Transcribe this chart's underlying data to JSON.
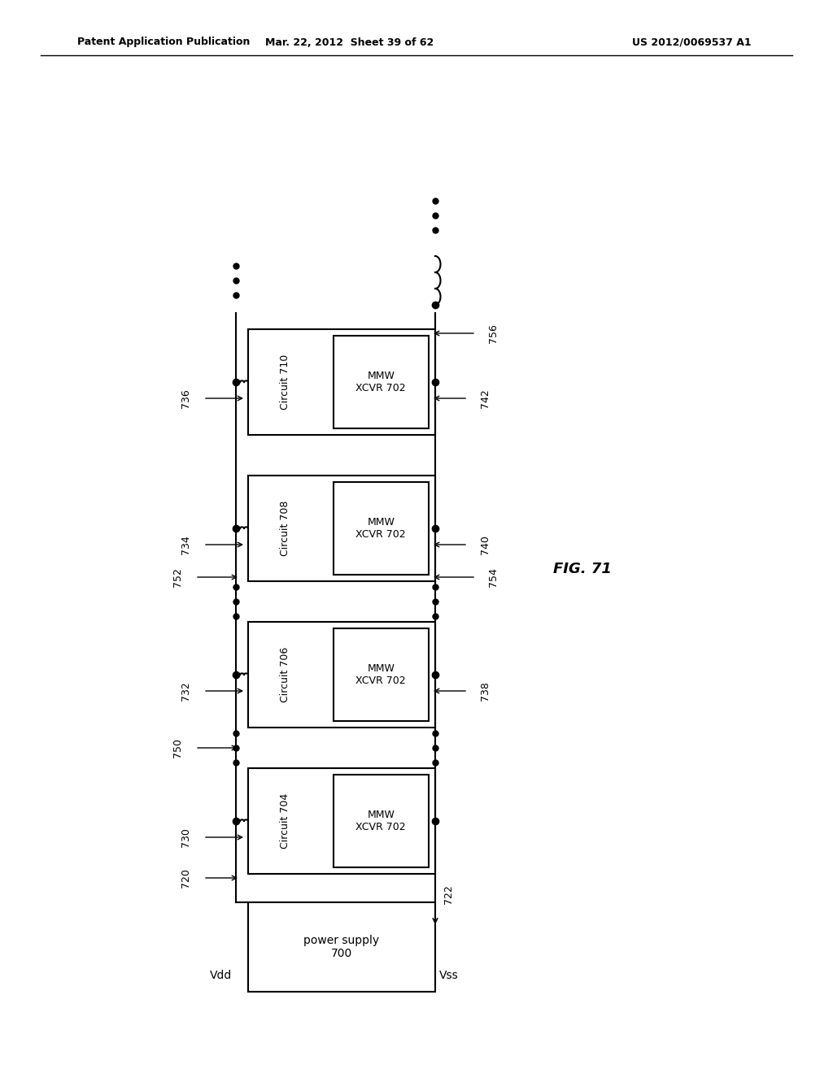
{
  "header_left": "Patent Application Publication",
  "header_mid": "Mar. 22, 2012  Sheet 39 of 62",
  "header_right": "US 2012/0069537 A1",
  "fig_label": "FIG. 71",
  "bg_color": "#ffffff",
  "line_color": "#000000",
  "circ_names": [
    "Circuit 704",
    "Circuit 706",
    "Circuit 708",
    "Circuit 710"
  ],
  "xcvr_label": "MMW\nXCVR 702",
  "ps_label": "power supply\n700",
  "vdd_label": "Vdd",
  "vss_label": "Vss",
  "left_refs": [
    "720",
    "730",
    "750",
    "732",
    "752",
    "734",
    "736"
  ],
  "right_refs": [
    "722",
    "738",
    "754",
    "740",
    "742",
    "756"
  ]
}
